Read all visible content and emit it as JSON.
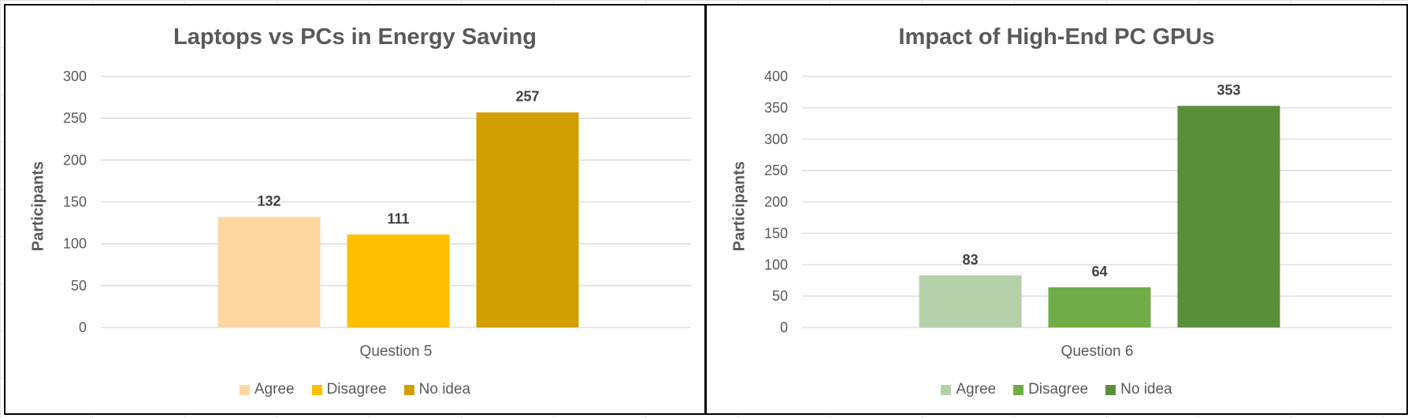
{
  "chart_data": [
    {
      "type": "bar",
      "title": "Laptops vs PCs in Energy Saving",
      "ylabel": "Participants",
      "xlabel": "",
      "categories": [
        "Question 5"
      ],
      "series": [
        {
          "name": "Agree",
          "values": [
            132
          ],
          "color": "#FDD7A1"
        },
        {
          "name": "Disagree",
          "values": [
            111
          ],
          "color": "#FFC000"
        },
        {
          "name": "No idea",
          "values": [
            257
          ],
          "color": "#D1A000"
        }
      ],
      "ylim": [
        0,
        300
      ],
      "yticks": [
        0,
        50,
        100,
        150,
        200,
        250,
        300
      ],
      "grid": true,
      "legend": "bottom",
      "data_labels": true
    },
    {
      "type": "bar",
      "title": "Impact of High-End PC GPUs",
      "ylabel": "Participants",
      "xlabel": "",
      "categories": [
        "Question 6"
      ],
      "series": [
        {
          "name": "Agree",
          "values": [
            83
          ],
          "color": "#B4D0A8"
        },
        {
          "name": "Disagree",
          "values": [
            64
          ],
          "color": "#70AD47"
        },
        {
          "name": "No idea",
          "values": [
            353
          ],
          "color": "#5A8F3A"
        }
      ],
      "ylim": [
        0,
        400
      ],
      "yticks": [
        0,
        50,
        100,
        150,
        200,
        250,
        300,
        350,
        400
      ],
      "grid": true,
      "legend": "bottom",
      "data_labels": true
    }
  ]
}
